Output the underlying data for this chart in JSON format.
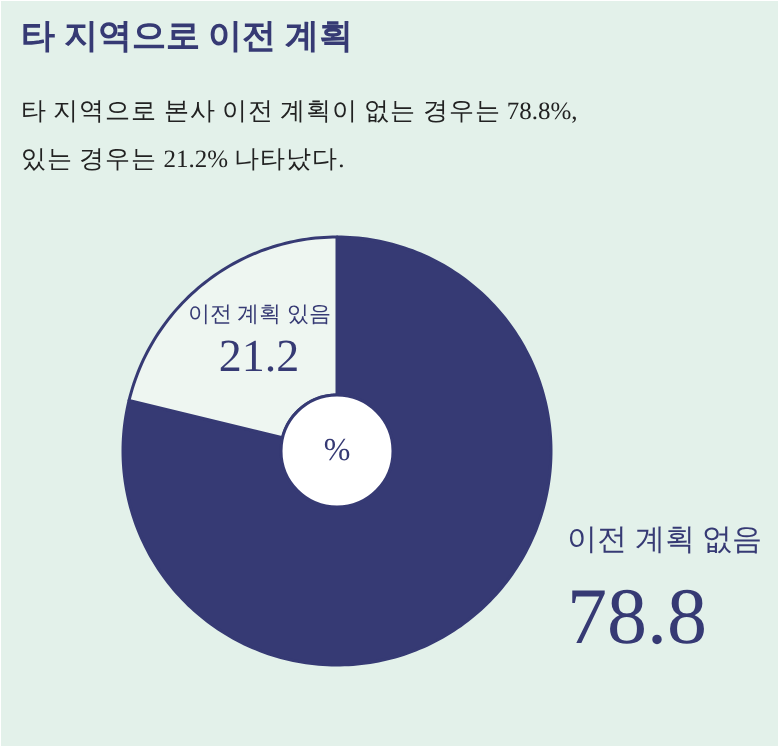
{
  "chart_data": {
    "type": "donut",
    "title": "타 지역으로 이전 계획",
    "subtitle": "타 지역으로 본사 이전 계획이 없는 경우는 78.8%,\n있는 경우는 21.2% 나타났다.",
    "categories": [
      "이전 계획 없음",
      "이전 계획 있음"
    ],
    "values": [
      78.8,
      21.2
    ],
    "colors": [
      "#363a74",
      "#eef6f1"
    ],
    "data_labels": true,
    "annotations": [
      "%"
    ]
  }
}
